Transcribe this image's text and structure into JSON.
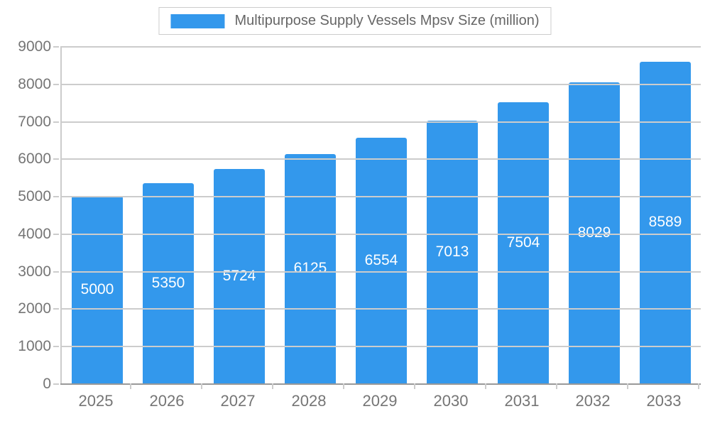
{
  "chart_data": {
    "type": "bar",
    "title": "Multipurpose Supply Vessels Mpsv Size (million)",
    "categories": [
      "2025",
      "2026",
      "2027",
      "2028",
      "2029",
      "2030",
      "2031",
      "2032",
      "2033"
    ],
    "values": [
      5000,
      5350,
      5724,
      6125,
      6554,
      7013,
      7504,
      8029,
      8589
    ],
    "xlabel": "",
    "ylabel": "",
    "ylim": [
      0,
      9000
    ],
    "ytick_step": 1000,
    "grid": true,
    "legend_position": "top",
    "value_labels": "inside-center",
    "colors": {
      "bar": "#3398EC",
      "bar_label": "#FFFFFF",
      "axis_text": "#757575",
      "grid_line": "#CCCCCC",
      "axis_line": "#999999",
      "legend_text": "#666666",
      "legend_border": "#CCCCCC"
    }
  }
}
